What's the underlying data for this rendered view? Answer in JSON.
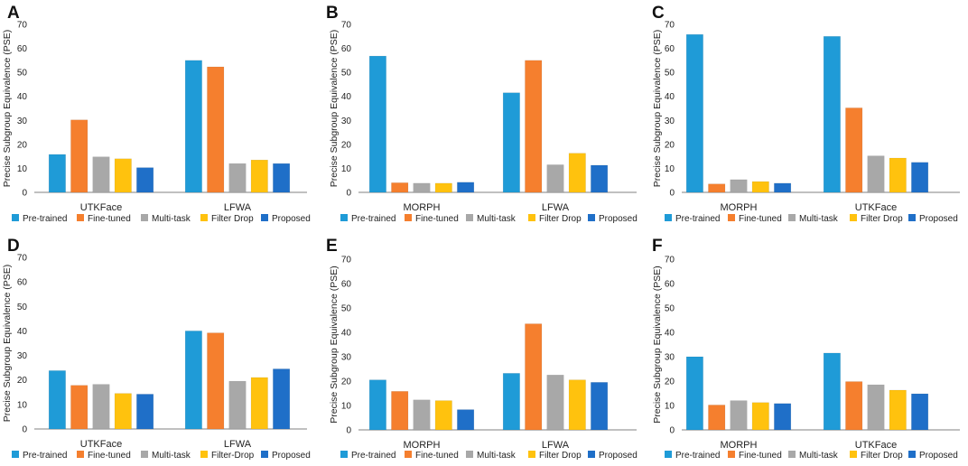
{
  "colors": {
    "pretrained": "#1f9bd7",
    "finetuned": "#f57f2e",
    "multitask": "#a8a8a8",
    "filterdrop": "#ffc20e",
    "proposed": "#1f6fc8",
    "axis": "#808080",
    "text": "#222222"
  },
  "chart_data": [
    {
      "panel_letter": "A",
      "type": "bar",
      "ylabel": "Precise Subgroup Equivalence (PSE)",
      "ylim": [
        0,
        70
      ],
      "yticks": [
        "0",
        "10",
        "20",
        "30",
        "40",
        "50",
        "60",
        "70"
      ],
      "categories": [
        "UTKFace",
        "LFWA"
      ],
      "series": [
        {
          "name": "Pre-trained",
          "color_key": "pretrained",
          "values": [
            15.8,
            55.0
          ]
        },
        {
          "name": "Fine-tuned",
          "color_key": "finetuned",
          "values": [
            30.2,
            52.3
          ]
        },
        {
          "name": "Multi-task",
          "color_key": "multitask",
          "values": [
            14.8,
            12.0
          ]
        },
        {
          "name": "Filter Drop",
          "color_key": "filterdrop",
          "values": [
            14.0,
            13.5
          ]
        },
        {
          "name": "Proposed",
          "color_key": "proposed",
          "values": [
            10.3,
            12.0
          ]
        }
      ]
    },
    {
      "panel_letter": "B",
      "type": "bar",
      "ylabel": "Precise Subgroup Equivalence (PSE)",
      "ylim": [
        0,
        70
      ],
      "yticks": [
        "0",
        "10",
        "20",
        "30",
        "40",
        "50",
        "60",
        "70"
      ],
      "categories": [
        "MORPH",
        "LFWA"
      ],
      "series": [
        {
          "name": "Pre-trained",
          "color_key": "pretrained",
          "values": [
            56.8,
            41.5
          ]
        },
        {
          "name": "Fine-tuned",
          "color_key": "finetuned",
          "values": [
            4.0,
            55.0
          ]
        },
        {
          "name": "Multi-task",
          "color_key": "multitask",
          "values": [
            3.8,
            11.5
          ]
        },
        {
          "name": "Filter Drop",
          "color_key": "filterdrop",
          "values": [
            3.8,
            16.3
          ]
        },
        {
          "name": "Proposed",
          "color_key": "proposed",
          "values": [
            4.2,
            11.3
          ]
        }
      ]
    },
    {
      "panel_letter": "C",
      "type": "bar",
      "ylabel": "Precise Subgroup Equivalence (PSE)",
      "ylim": [
        0,
        70
      ],
      "yticks": [
        "0",
        "10",
        "20",
        "30",
        "40",
        "50",
        "60",
        "70"
      ],
      "categories": [
        "MORPH",
        "UTKFace"
      ],
      "series": [
        {
          "name": "Pre-trained",
          "color_key": "pretrained",
          "values": [
            65.8,
            65.0
          ]
        },
        {
          "name": "Fine-tuned",
          "color_key": "finetuned",
          "values": [
            3.5,
            35.2
          ]
        },
        {
          "name": "Multi-task",
          "color_key": "multitask",
          "values": [
            5.3,
            15.2
          ]
        },
        {
          "name": "Filter Drop",
          "color_key": "filterdrop",
          "values": [
            4.5,
            14.3
          ]
        },
        {
          "name": "Proposed",
          "color_key": "proposed",
          "values": [
            3.8,
            12.5
          ]
        }
      ]
    },
    {
      "panel_letter": "D",
      "type": "bar",
      "ylabel": "Precise Subgroup Equivalence (PSE)",
      "ylim": [
        0,
        70
      ],
      "yticks": [
        "0",
        "10",
        "20",
        "30",
        "40",
        "50",
        "60",
        "70"
      ],
      "categories": [
        "UTKFace",
        "LFWA"
      ],
      "series": [
        {
          "name": "Pre-trained",
          "color_key": "pretrained",
          "values": [
            23.8,
            40.0
          ]
        },
        {
          "name": "Fine-tuned",
          "color_key": "finetuned",
          "values": [
            17.8,
            39.2
          ]
        },
        {
          "name": "Multi-task",
          "color_key": "multitask",
          "values": [
            18.2,
            19.5
          ]
        },
        {
          "name": "Filter-Drop",
          "color_key": "filterdrop",
          "values": [
            14.5,
            21.0
          ]
        },
        {
          "name": "Proposed",
          "color_key": "proposed",
          "values": [
            14.2,
            24.5
          ]
        }
      ]
    },
    {
      "panel_letter": "E",
      "type": "bar",
      "ylabel": "Precise Subgroup Equivalence (PSE)",
      "ylim": [
        0,
        70
      ],
      "yticks": [
        "0",
        "10",
        "20",
        "30",
        "40",
        "50",
        "60",
        "70"
      ],
      "categories": [
        "MORPH",
        "LFWA"
      ],
      "series": [
        {
          "name": "Pre-trained",
          "color_key": "pretrained",
          "values": [
            20.5,
            23.2
          ]
        },
        {
          "name": "Fine-tuned",
          "color_key": "finetuned",
          "values": [
            15.8,
            43.5
          ]
        },
        {
          "name": "Multi-task",
          "color_key": "multitask",
          "values": [
            12.3,
            22.5
          ]
        },
        {
          "name": "Filter Drop",
          "color_key": "filterdrop",
          "values": [
            12.0,
            20.5
          ]
        },
        {
          "name": "Proposed",
          "color_key": "proposed",
          "values": [
            8.3,
            19.5
          ]
        }
      ]
    },
    {
      "panel_letter": "F",
      "type": "bar",
      "ylabel": "Precise Subgroup Equivalence (PSE)",
      "ylim": [
        0,
        70
      ],
      "yticks": [
        "0",
        "10",
        "20",
        "30",
        "40",
        "50",
        "60",
        "70"
      ],
      "categories": [
        "MORPH",
        "UTKFace"
      ],
      "series": [
        {
          "name": "Pre-trained",
          "color_key": "pretrained",
          "values": [
            30.0,
            31.5
          ]
        },
        {
          "name": "Fine-tuned",
          "color_key": "finetuned",
          "values": [
            10.2,
            19.8
          ]
        },
        {
          "name": "Multi-task",
          "color_key": "multitask",
          "values": [
            12.0,
            18.5
          ]
        },
        {
          "name": "Filter Drop",
          "color_key": "filterdrop",
          "values": [
            11.2,
            16.3
          ]
        },
        {
          "name": "Proposed",
          "color_key": "proposed",
          "values": [
            10.8,
            14.8
          ]
        }
      ]
    }
  ]
}
